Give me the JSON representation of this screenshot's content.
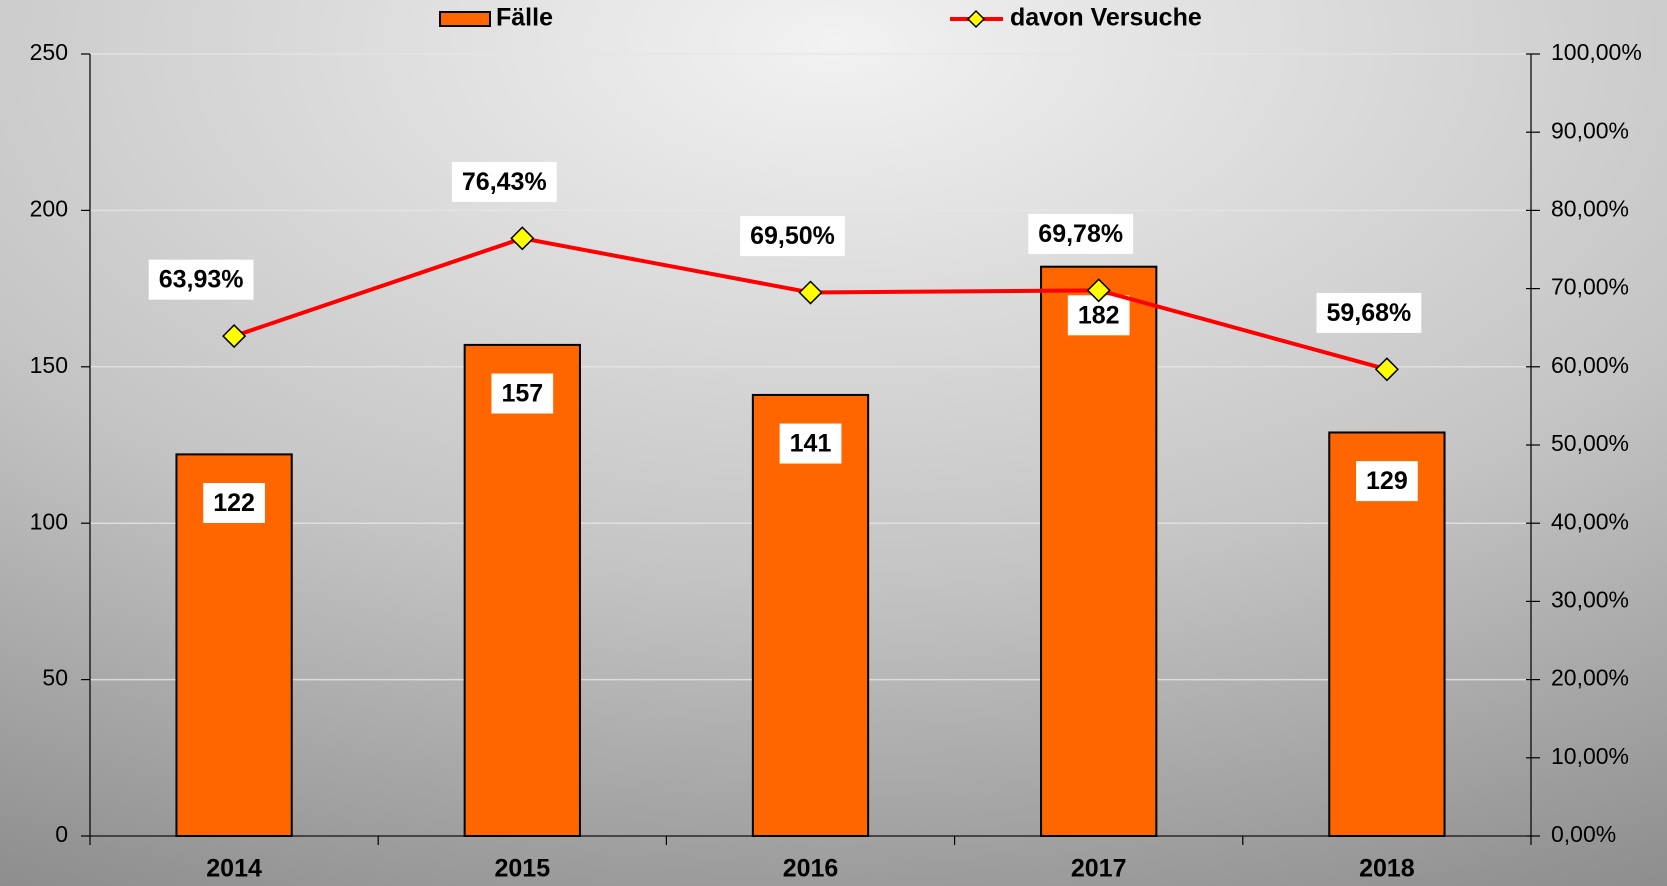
{
  "chart_data": {
    "type": "bar",
    "categories": [
      "2014",
      "2015",
      "2016",
      "2017",
      "2018"
    ],
    "series": [
      {
        "name": "Fälle",
        "type": "bar",
        "color": "#ff6600",
        "values": [
          122,
          157,
          141,
          182,
          129
        ]
      },
      {
        "name": "davon Versuche",
        "type": "line",
        "axis": "y2",
        "color": "#ff0000",
        "marker_color": "#ffff00",
        "values": [
          63.93,
          76.43,
          69.5,
          69.78,
          59.68
        ],
        "value_labels": [
          "63,93%",
          "76,43%",
          "69,50%",
          "69,78%",
          "59,68%"
        ]
      }
    ],
    "ylim": [
      0,
      250
    ],
    "yticks": [
      0,
      50,
      100,
      150,
      200,
      250
    ],
    "y2lim": [
      0,
      100
    ],
    "y2ticks": [
      {
        "value": 0,
        "label": "0,00%"
      },
      {
        "value": 10,
        "label": "10,00%"
      },
      {
        "value": 20,
        "label": "20,00%"
      },
      {
        "value": 30,
        "label": "30,00%"
      },
      {
        "value": 40,
        "label": "40,00%"
      },
      {
        "value": 50,
        "label": "50,00%"
      },
      {
        "value": 60,
        "label": "60,00%"
      },
      {
        "value": 70,
        "label": "70,00%"
      },
      {
        "value": 80,
        "label": "80,00%"
      },
      {
        "value": 90,
        "label": "90,00%"
      },
      {
        "value": 100,
        "label": "100,00%"
      }
    ],
    "grid": true,
    "legend": "top"
  }
}
